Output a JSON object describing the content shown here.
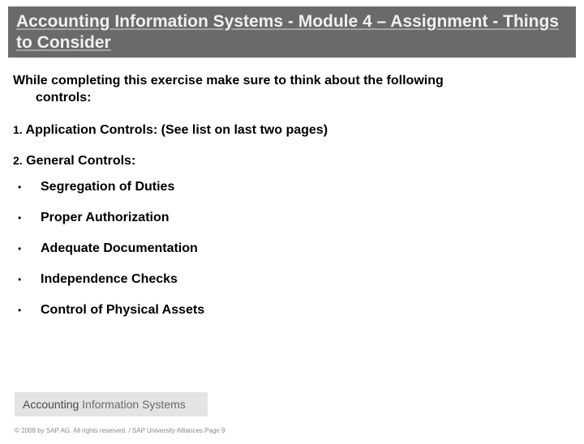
{
  "colors": {
    "title_bar_bg": "#6a6a6a",
    "title_text": "#f0f0f0",
    "body_text": "#000000",
    "footer_bar_bg": "#e4e4e4",
    "footer_text": "#4a4a4a",
    "copyright_text": "#888888",
    "page_bg": "#ffffff"
  },
  "typography": {
    "title_fontsize": 21,
    "body_fontsize": 16,
    "bullet_marker_fontsize": 12,
    "footer_fontsize": 14,
    "copyright_fontsize": 8,
    "font_family": "Arial"
  },
  "title": "Accounting Information Systems  -  Module 4 – Assignment - Things to Consider",
  "intro_line1": "While completing this exercise make sure to think about the following",
  "intro_line2": "controls:",
  "section1": {
    "number": "1.",
    "text": "Application Controls:  (See list on last two pages)"
  },
  "section2": {
    "number": "2.",
    "text": "General Controls:"
  },
  "bullets": [
    "Segregation of Duties",
    "Proper Authorization",
    "Adequate Documentation",
    "Independence Checks",
    "Control of Physical Assets"
  ],
  "footer": {
    "word1": "Accounting",
    "word2": "Information Systems"
  },
  "copyright": "© 2008 by SAP AG. All rights reserved. / SAP University Alliances Page 9"
}
